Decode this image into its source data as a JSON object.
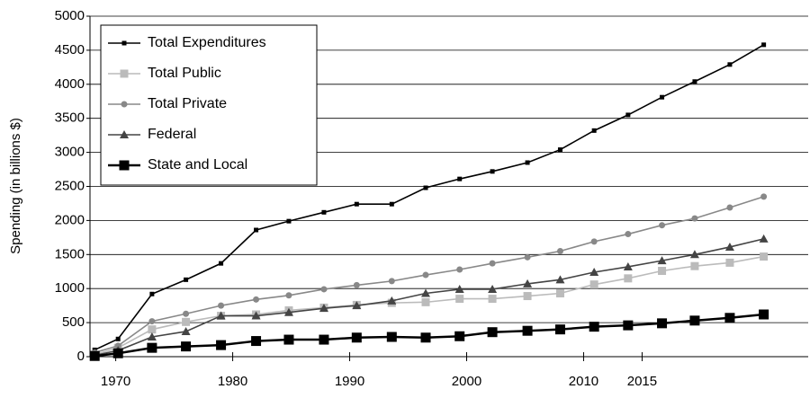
{
  "chart_data": {
    "type": "line",
    "y_label": "Spending (in billions $)",
    "x": [
      1968.2,
      1970.2,
      1973.1,
      1976.0,
      1979.0,
      1982.0,
      1984.8,
      1987.8,
      1990.6,
      1993.6,
      1996.5,
      1999.4,
      2002.2,
      2005.2,
      2008.0,
      2010.9,
      2013.8,
      2016.7,
      2019.5,
      2022.5,
      2025.4
    ],
    "xlim": [
      1967.8,
      2029.2
    ],
    "xticks": [
      1970,
      1980,
      1990,
      2000,
      2010,
      2015
    ],
    "ylim": [
      0,
      5000
    ],
    "yticks": [
      0,
      500,
      1000,
      1500,
      2000,
      2500,
      3000,
      3500,
      4000,
      4500,
      5000
    ],
    "grid": true,
    "legend": "upper left",
    "series": [
      {
        "name": "Total Expenditures",
        "color": "#000000",
        "marker": "square-small",
        "values": [
          100,
          260,
          920,
          1130,
          1370,
          1860,
          1990,
          2120,
          2240,
          2240,
          2480,
          2610,
          2720,
          2850,
          3040,
          3320,
          3550,
          3810,
          4040,
          4290,
          4580
        ]
      },
      {
        "name": "Total Public",
        "color": "#bbbbbb",
        "marker": "square",
        "values": [
          30,
          130,
          400,
          510,
          600,
          620,
          680,
          720,
          760,
          790,
          800,
          850,
          850,
          890,
          930,
          1060,
          1150,
          1260,
          1330,
          1380,
          1470
        ]
      },
      {
        "name": "Total Private",
        "color": "#888888",
        "marker": "circle",
        "values": [
          60,
          160,
          520,
          630,
          750,
          840,
          900,
          990,
          1050,
          1110,
          1200,
          1280,
          1370,
          1460,
          1550,
          1690,
          1800,
          1930,
          2030,
          2190,
          2350
        ]
      },
      {
        "name": "Federal",
        "color": "#444444",
        "marker": "triangle",
        "values": [
          20,
          90,
          290,
          370,
          600,
          600,
          650,
          710,
          750,
          820,
          930,
          990,
          990,
          1070,
          1130,
          1240,
          1320,
          1410,
          1500,
          1610,
          1730
        ]
      },
      {
        "name": "State and Local",
        "color": "#000000",
        "marker": "square-big",
        "values": [
          10,
          50,
          130,
          150,
          170,
          230,
          250,
          250,
          280,
          290,
          280,
          300,
          360,
          380,
          400,
          440,
          460,
          490,
          530,
          570,
          620
        ]
      }
    ]
  }
}
